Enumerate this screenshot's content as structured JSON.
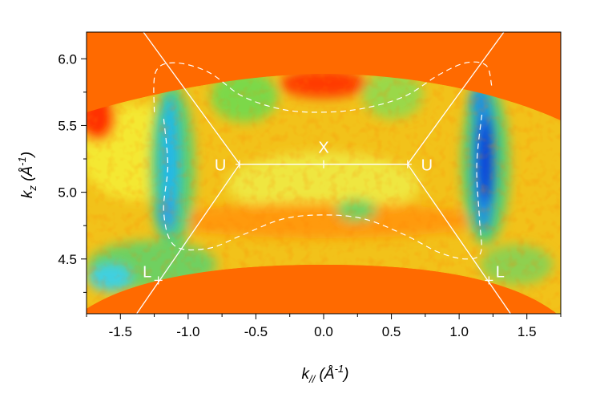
{
  "chart_data": {
    "type": "heatmap",
    "title": "",
    "x_axis": {
      "label_main": "k",
      "label_sub": "//",
      "label_unit": " (Å",
      "label_unit_sup": "-1",
      "label_close": ")",
      "range": [
        -1.75,
        1.75
      ],
      "ticks": [
        -1.5,
        -1.0,
        -0.5,
        0.0,
        0.5,
        1.0,
        1.5
      ],
      "tick_labels": [
        "-1.5",
        "-1.0",
        "-0.5",
        "0.0",
        "0.5",
        "1.0",
        "1.5"
      ]
    },
    "y_axis": {
      "label_main": "k",
      "label_sub": "z",
      "label_unit": " (Å",
      "label_unit_sup": "-1",
      "label_close": ")",
      "range": [
        4.09,
        6.2
      ],
      "ticks": [
        4.5,
        5.0,
        5.5,
        6.0
      ],
      "tick_labels": [
        "4.5",
        "5.0",
        "5.5",
        "6.0"
      ]
    },
    "colors": {
      "background": "#ff6a00",
      "dim_background": "#f0a020",
      "zone_boundary": "#ffffff",
      "contour": "#ffffff"
    },
    "features": [
      {
        "x": -1.12,
        "y": 5.05,
        "kind": "blue-green vertical band"
      },
      {
        "x": 1.2,
        "y": 5.2,
        "kind": "deep blue vertical band"
      },
      {
        "x": 0.0,
        "y": 5.87,
        "kind": "red maximum"
      },
      {
        "x": -0.55,
        "y": 5.65,
        "kind": "green lobe"
      },
      {
        "x": 0.5,
        "y": 5.65,
        "kind": "green lobe"
      },
      {
        "x": -1.6,
        "y": 4.42,
        "kind": "cyan region"
      }
    ],
    "zone_boundary": [
      [
        -1.33,
        6.2
      ],
      [
        -0.62,
        5.21
      ],
      [
        0.62,
        5.21
      ],
      [
        1.33,
        6.2
      ]
    ],
    "zone_boundary_lower_left": [
      [
        -0.62,
        5.21
      ],
      [
        -1.38,
        4.09
      ]
    ],
    "zone_boundary_lower_right": [
      [
        0.62,
        5.21
      ],
      [
        1.38,
        4.09
      ]
    ],
    "contour_upper": [
      [
        -1.25,
        5.6
      ],
      [
        -1.24,
        5.9
      ],
      [
        -1.1,
        5.97
      ],
      [
        -0.85,
        5.9
      ],
      [
        -0.6,
        5.72
      ],
      [
        -0.3,
        5.62
      ],
      [
        0.0,
        5.6
      ],
      [
        0.3,
        5.63
      ],
      [
        0.6,
        5.72
      ],
      [
        0.85,
        5.88
      ],
      [
        1.05,
        5.97
      ],
      [
        1.2,
        5.95
      ],
      [
        1.24,
        5.8
      ]
    ],
    "contour_lower": [
      [
        -1.18,
        5.55
      ],
      [
        -1.15,
        5.2
      ],
      [
        -1.18,
        4.85
      ],
      [
        -1.1,
        4.6
      ],
      [
        -0.85,
        4.58
      ],
      [
        -0.6,
        4.68
      ],
      [
        -0.3,
        4.8
      ],
      [
        0.0,
        4.83
      ],
      [
        0.3,
        4.8
      ],
      [
        0.6,
        4.68
      ],
      [
        0.85,
        4.55
      ],
      [
        1.05,
        4.5
      ],
      [
        1.16,
        4.55
      ],
      [
        1.15,
        4.8
      ],
      [
        1.13,
        5.2
      ],
      [
        1.17,
        5.6
      ]
    ],
    "high_symmetry_points": [
      {
        "label": "X",
        "x": 0.0,
        "y": 5.21
      },
      {
        "label": "U",
        "x": -0.62,
        "y": 5.21
      },
      {
        "label": "U",
        "x": 0.62,
        "y": 5.21
      },
      {
        "label": "L",
        "x": -1.22,
        "y": 4.34
      },
      {
        "label": "L",
        "x": 1.22,
        "y": 4.34
      }
    ]
  }
}
